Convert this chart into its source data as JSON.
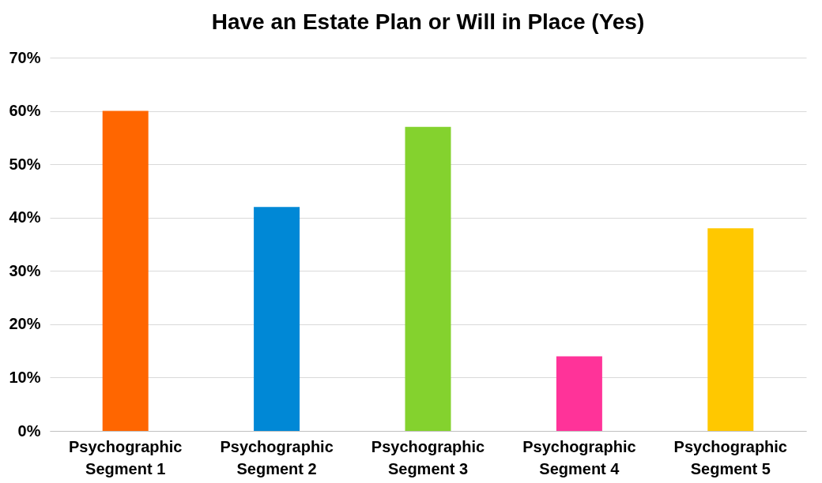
{
  "chart_data": {
    "type": "bar",
    "title": "Have an Estate Plan or Will in Place (Yes)",
    "categories": [
      "Psychographic Segment 1",
      "Psychographic Segment 2",
      "Psychographic Segment 3",
      "Psychographic Segment 4",
      "Psychographic Segment 5"
    ],
    "values": [
      60,
      42,
      57,
      14,
      38
    ],
    "colors": [
      "#ff6600",
      "#0088d6",
      "#84d22e",
      "#ff3399",
      "#ffc800"
    ],
    "ylim": [
      0,
      70
    ],
    "yticks": [
      {
        "value": 0,
        "label": "0%"
      },
      {
        "value": 10,
        "label": "10%"
      },
      {
        "value": 20,
        "label": "20%"
      },
      {
        "value": 30,
        "label": "30%"
      },
      {
        "value": 40,
        "label": "40%"
      },
      {
        "value": 50,
        "label": "50%"
      },
      {
        "value": 60,
        "label": "60%"
      },
      {
        "value": 70,
        "label": "70%"
      }
    ],
    "grid": "y",
    "legend": false
  }
}
